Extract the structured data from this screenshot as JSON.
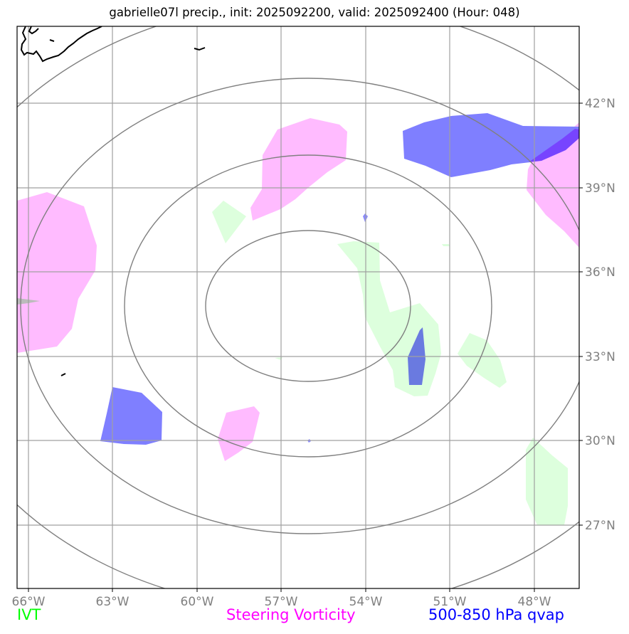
{
  "title": "gabrielle07l precip., init: 2025092200, valid: 2025092400 (Hour: 048)",
  "map": {
    "lon_ticks": [
      "66°W",
      "63°W",
      "60°W",
      "57°W",
      "54°W",
      "51°W",
      "48°W"
    ],
    "lat_ticks": [
      "42°N",
      "39°N",
      "36°N",
      "33°N",
      "30°N",
      "27°N"
    ],
    "lon_range": [
      -66.3,
      -46.5
    ],
    "lat_range": [
      24.5,
      44.5
    ],
    "range_rings_center": [
      -56.0,
      35.0
    ],
    "range_ring_count": 4
  },
  "legend": {
    "ivt": {
      "label": "IVT",
      "color": "#00ff00"
    },
    "vorticity": {
      "label": "Steering Vorticity",
      "color": "#ff00ff"
    },
    "qvap": {
      "label": "500-850 hPa qvap",
      "color": "#0000ff"
    }
  },
  "colors": {
    "ivt_fill": "#ddffdd",
    "vorticity_fill": "#ffbbff",
    "qvap_fill": "#7f7fff",
    "qvap_dark": "#6a7ae0",
    "grid": "#a0a0a0",
    "rings": "#808080",
    "coast": "#000000"
  }
}
